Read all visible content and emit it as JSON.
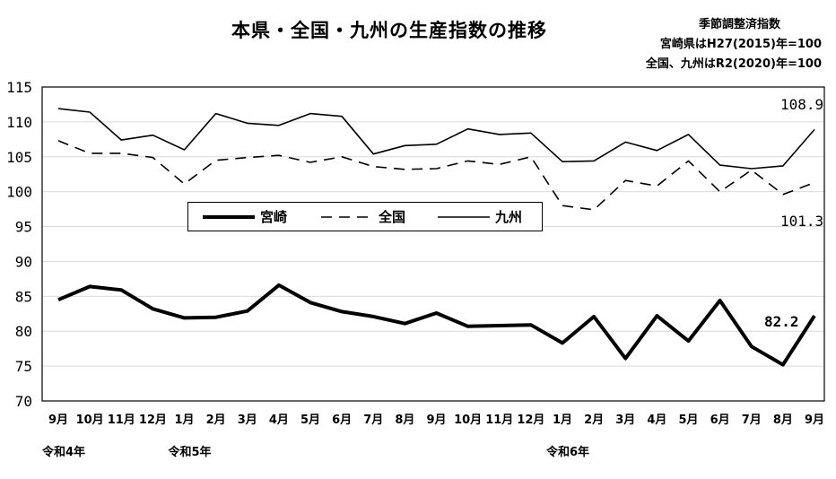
{
  "header": {
    "title": "本県・全国・九州の生産指数の推移",
    "note_line1": "季節調整済指数",
    "note_line2": "宮崎県はH27(2015)年=100",
    "note_line3": "全国、九州はR2(2020)年=100"
  },
  "era_labels": [
    {
      "label": "令和4年",
      "index": 0
    },
    {
      "label": "令和5年",
      "index": 4
    },
    {
      "label": "令和6年",
      "index": 16
    }
  ],
  "end_labels": {
    "kyushu": "108.9",
    "national": "101.3",
    "miyazaki": "82.2"
  },
  "chart_data": {
    "type": "line",
    "categories": [
      "9月",
      "10月",
      "11月",
      "12月",
      "1月",
      "2月",
      "3月",
      "4月",
      "5月",
      "6月",
      "7月",
      "8月",
      "9月",
      "10月",
      "11月",
      "12月",
      "1月",
      "2月",
      "3月",
      "4月",
      "5月",
      "6月",
      "7月",
      "8月",
      "9月"
    ],
    "ylim": [
      70,
      115
    ],
    "yticks": [
      70,
      75,
      80,
      85,
      90,
      95,
      100,
      105,
      110,
      115
    ],
    "grid": true,
    "legend_position": "center-left",
    "series": [
      {
        "name": "宮崎",
        "style": "thick-solid",
        "values": [
          84.5,
          86.4,
          85.9,
          83.2,
          81.9,
          82.0,
          82.9,
          86.6,
          84.1,
          82.8,
          82.1,
          81.1,
          82.6,
          80.7,
          80.8,
          80.9,
          78.3,
          82.1,
          76.1,
          82.2,
          78.6,
          84.4,
          77.8,
          75.2,
          82.2
        ]
      },
      {
        "name": "全国",
        "style": "dashed",
        "values": [
          107.3,
          105.5,
          105.5,
          104.9,
          101.1,
          104.5,
          104.9,
          105.2,
          104.2,
          105.0,
          103.6,
          103.2,
          103.3,
          104.4,
          103.9,
          105.0,
          98.0,
          97.4,
          101.6,
          100.8,
          104.4,
          100.0,
          103.1,
          99.6,
          101.3
        ]
      },
      {
        "name": "九州",
        "style": "solid",
        "values": [
          111.9,
          111.4,
          107.4,
          108.1,
          106.0,
          111.2,
          109.8,
          109.5,
          111.2,
          110.8,
          105.4,
          106.6,
          106.8,
          109.0,
          108.2,
          108.4,
          104.3,
          104.4,
          107.1,
          105.9,
          108.2,
          103.8,
          103.3,
          103.7,
          108.9
        ]
      }
    ]
  }
}
